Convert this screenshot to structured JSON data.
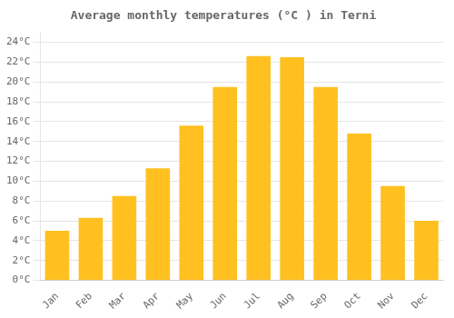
{
  "chart_data": {
    "type": "bar",
    "title": "Average monthly temperatures (°C ) in Terni",
    "categories": [
      "Jan",
      "Feb",
      "Mar",
      "Apr",
      "May",
      "Jun",
      "Jul",
      "Aug",
      "Sep",
      "Oct",
      "Nov",
      "Dec"
    ],
    "values": [
      5.0,
      6.3,
      8.5,
      11.3,
      15.6,
      19.5,
      22.6,
      22.5,
      19.5,
      14.8,
      9.5,
      6.0
    ],
    "color": "#FFC020",
    "ylim": [
      0,
      25
    ],
    "yticks": [
      {
        "value": 0,
        "label": "0°C"
      },
      {
        "value": 2,
        "label": "2°C"
      },
      {
        "value": 4,
        "label": "4°C"
      },
      {
        "value": 6,
        "label": "6°C"
      },
      {
        "value": 8,
        "label": "8°C"
      },
      {
        "value": 10,
        "label": "10°C"
      },
      {
        "value": 12,
        "label": "12°C"
      },
      {
        "value": 14,
        "label": "14°C"
      },
      {
        "value": 16,
        "label": "16°C"
      },
      {
        "value": 18,
        "label": "18°C"
      },
      {
        "value": 20,
        "label": "20°C"
      },
      {
        "value": 22,
        "label": "22°C"
      },
      {
        "value": 24,
        "label": "24°C"
      }
    ],
    "grid": true
  }
}
